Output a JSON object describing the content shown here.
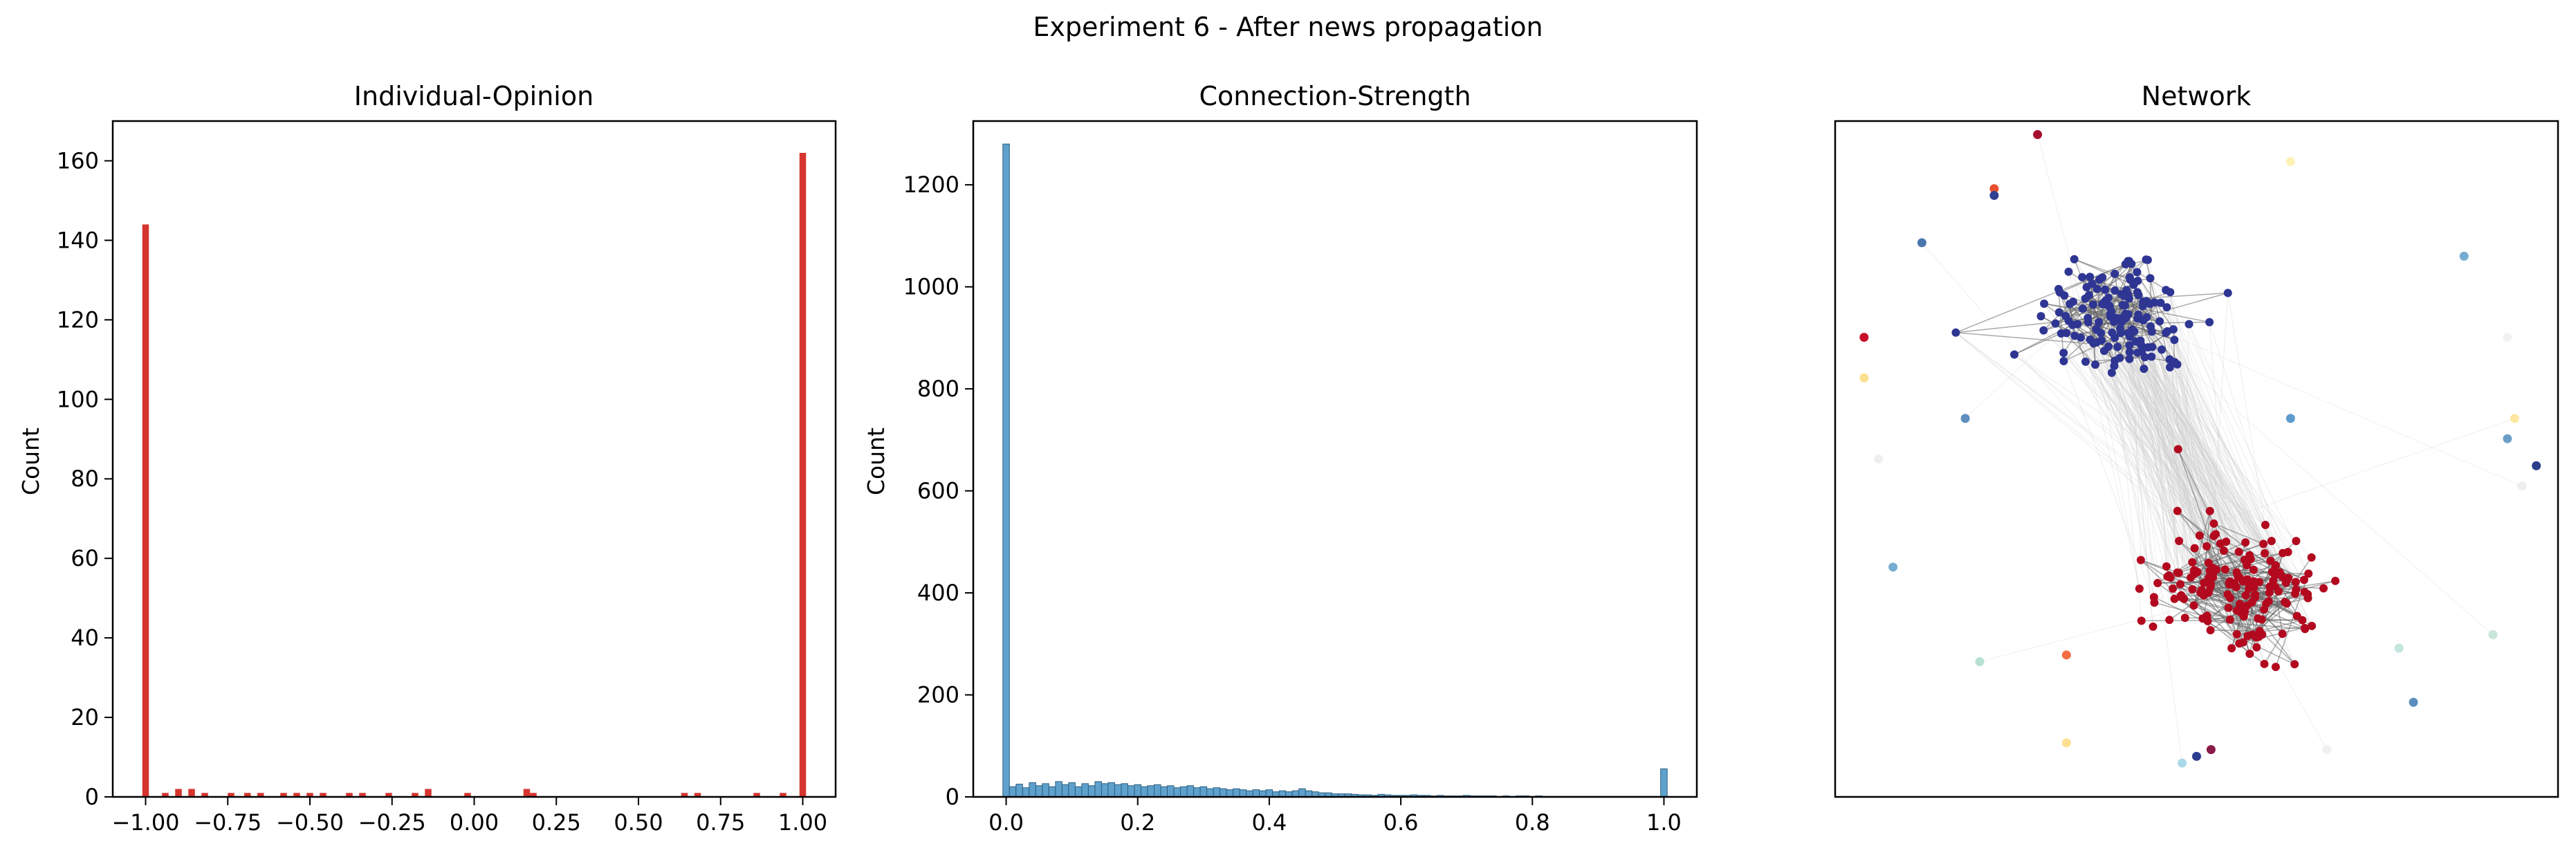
{
  "figure": {
    "suptitle": "Experiment 6 - After news propagation"
  },
  "chart_data": [
    {
      "type": "bar",
      "title": "Individual-Opinion",
      "xlabel": "",
      "ylabel": "Count",
      "xlim": [
        -1.1,
        1.1
      ],
      "ylim": [
        0,
        170
      ],
      "xticks": [
        -1.0,
        -0.75,
        -0.5,
        -0.25,
        0.0,
        0.25,
        0.5,
        0.75,
        1.0
      ],
      "xtick_labels": [
        "−1.00",
        "−0.75",
        "−0.50",
        "−0.25",
        "0.00",
        "0.25",
        "0.50",
        "0.75",
        "1.00"
      ],
      "yticks": [
        0,
        20,
        40,
        60,
        80,
        100,
        120,
        140,
        160
      ],
      "ytick_labels": [
        "0",
        "20",
        "40",
        "60",
        "80",
        "100",
        "120",
        "140",
        "160"
      ],
      "bin_width": 0.02,
      "bar_color": "#d6352f",
      "bars": [
        {
          "x": -1.0,
          "value": 144
        },
        {
          "x": -0.94,
          "value": 1
        },
        {
          "x": -0.9,
          "value": 2
        },
        {
          "x": -0.86,
          "value": 2
        },
        {
          "x": -0.82,
          "value": 1
        },
        {
          "x": -0.74,
          "value": 1
        },
        {
          "x": -0.69,
          "value": 1
        },
        {
          "x": -0.65,
          "value": 1
        },
        {
          "x": -0.58,
          "value": 1
        },
        {
          "x": -0.54,
          "value": 1
        },
        {
          "x": -0.5,
          "value": 1
        },
        {
          "x": -0.46,
          "value": 1
        },
        {
          "x": -0.38,
          "value": 1
        },
        {
          "x": -0.34,
          "value": 1
        },
        {
          "x": -0.26,
          "value": 1
        },
        {
          "x": -0.18,
          "value": 1
        },
        {
          "x": -0.14,
          "value": 2
        },
        {
          "x": -0.02,
          "value": 1
        },
        {
          "x": 0.16,
          "value": 2
        },
        {
          "x": 0.18,
          "value": 1
        },
        {
          "x": 0.64,
          "value": 1
        },
        {
          "x": 0.68,
          "value": 1
        },
        {
          "x": 0.86,
          "value": 1
        },
        {
          "x": 0.94,
          "value": 1
        },
        {
          "x": 1.0,
          "value": 162
        }
      ]
    },
    {
      "type": "bar",
      "title": "Connection-Strength",
      "xlabel": "",
      "ylabel": "Count",
      "xlim": [
        -0.05,
        1.05
      ],
      "ylim": [
        0,
        1325
      ],
      "xticks": [
        0.0,
        0.2,
        0.4,
        0.6,
        0.8,
        1.0
      ],
      "xtick_labels": [
        "0.0",
        "0.2",
        "0.4",
        "0.6",
        "0.8",
        "1.0"
      ],
      "yticks": [
        0,
        200,
        400,
        600,
        800,
        1000,
        1200
      ],
      "ytick_labels": [
        "0",
        "200",
        "400",
        "600",
        "800",
        "1000",
        "1200"
      ],
      "bin_width": 0.01,
      "bar_color": "#5ea1cc",
      "values": [
        1280,
        20,
        25,
        18,
        28,
        22,
        26,
        20,
        30,
        24,
        28,
        20,
        26,
        22,
        30,
        26,
        28,
        24,
        26,
        22,
        24,
        20,
        22,
        24,
        20,
        22,
        18,
        20,
        22,
        18,
        20,
        16,
        18,
        16,
        14,
        16,
        14,
        12,
        14,
        12,
        14,
        10,
        12,
        10,
        12,
        16,
        12,
        10,
        8,
        8,
        6,
        6,
        6,
        5,
        4,
        4,
        3,
        5,
        4,
        3,
        3,
        3,
        4,
        3,
        3,
        2,
        3,
        2,
        2,
        2,
        3,
        2,
        2,
        2,
        2,
        1,
        2,
        1,
        2,
        2,
        1,
        2,
        1,
        1,
        1,
        1,
        1,
        1,
        1,
        1,
        1,
        1,
        1,
        1,
        1,
        1,
        1,
        1,
        1,
        1,
        55
      ]
    },
    {
      "type": "network",
      "title": "Network",
      "colors": {
        "negative": "#3b3ba1",
        "positive": "#b80f2a",
        "edge": "#666666",
        "faint_edge": "#cccccc"
      },
      "clusters": [
        {
          "name": "opinion -1",
          "color": "#2e3592",
          "nodes": 144
        },
        {
          "name": "opinion +1",
          "color": "#b3091f",
          "nodes": 162
        }
      ],
      "isolated_nodes": [
        {
          "x": 0.28,
          "y": 0.02,
          "color": "#a50d2e"
        },
        {
          "x": 0.22,
          "y": 0.1,
          "color": "#e8502f"
        },
        {
          "x": 0.22,
          "y": 0.11,
          "color": "#2e3f90"
        },
        {
          "x": 0.12,
          "y": 0.18,
          "color": "#4a76ae"
        },
        {
          "x": 0.04,
          "y": 0.32,
          "color": "#c8102a"
        },
        {
          "x": 0.04,
          "y": 0.38,
          "color": "#fde08f"
        },
        {
          "x": 0.18,
          "y": 0.44,
          "color": "#5d8fbe"
        },
        {
          "x": 0.06,
          "y": 0.5,
          "color": "#eeeeee"
        },
        {
          "x": 0.08,
          "y": 0.66,
          "color": "#74add1"
        },
        {
          "x": 0.2,
          "y": 0.8,
          "color": "#b7e0d0"
        },
        {
          "x": 0.32,
          "y": 0.79,
          "color": "#f46d43"
        },
        {
          "x": 0.32,
          "y": 0.92,
          "color": "#fee090"
        },
        {
          "x": 0.48,
          "y": 0.95,
          "color": "#abd9e9"
        },
        {
          "x": 0.5,
          "y": 0.94,
          "color": "#2c3d8f"
        },
        {
          "x": 0.52,
          "y": 0.93,
          "color": "#8b1a4a"
        },
        {
          "x": 0.68,
          "y": 0.93,
          "color": "#f0f0f0"
        },
        {
          "x": 0.78,
          "y": 0.78,
          "color": "#c5e5df"
        },
        {
          "x": 0.8,
          "y": 0.86,
          "color": "#5b8ebf"
        },
        {
          "x": 0.91,
          "y": 0.76,
          "color": "#c9e6d7"
        },
        {
          "x": 0.87,
          "y": 0.2,
          "color": "#74add1"
        },
        {
          "x": 0.93,
          "y": 0.32,
          "color": "#f2f2f2"
        },
        {
          "x": 0.94,
          "y": 0.44,
          "color": "#ffe7a1"
        },
        {
          "x": 0.93,
          "y": 0.47,
          "color": "#6b9fca"
        },
        {
          "x": 0.97,
          "y": 0.51,
          "color": "#2b3e8b"
        },
        {
          "x": 0.95,
          "y": 0.54,
          "color": "#eeeeee"
        },
        {
          "x": 0.63,
          "y": 0.44,
          "color": "#5e9bcd"
        },
        {
          "x": 0.63,
          "y": 0.06,
          "color": "#fff2b5"
        }
      ]
    }
  ]
}
